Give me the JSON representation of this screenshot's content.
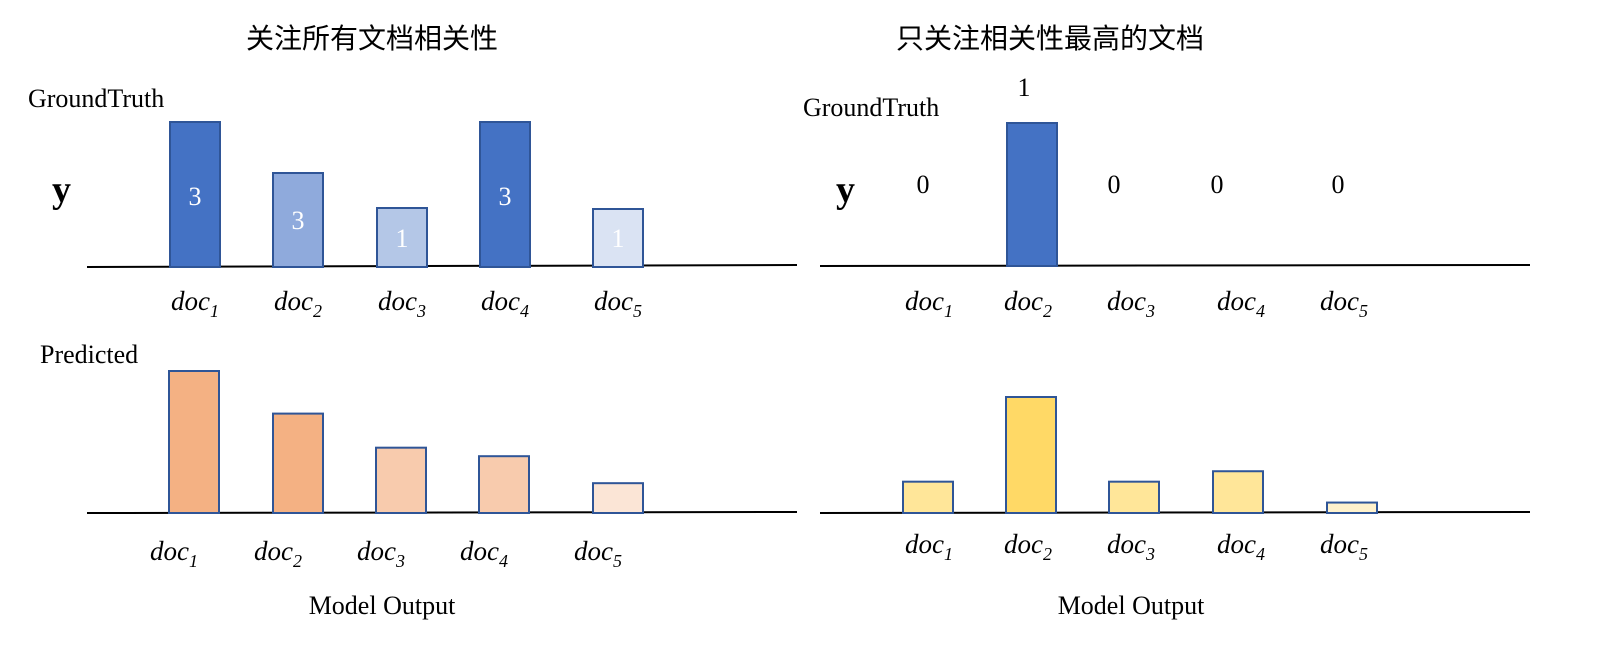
{
  "left_panel": {
    "title": "关注所有文档相关性",
    "groundtruth_label": "GroundTruth",
    "y_label": "y",
    "predicted_label": "Predicted",
    "model_output_label": "Model Output",
    "groundtruth_bars": [
      {
        "doc": "doc",
        "sub": "1",
        "value": 3,
        "label": "3",
        "color": "#4472C4"
      },
      {
        "doc": "doc",
        "sub": "2",
        "value": 3,
        "label": "3",
        "color": "#8FAADC"
      },
      {
        "doc": "doc",
        "sub": "3",
        "value": 1,
        "label": "1",
        "color": "#B4C7E7"
      },
      {
        "doc": "doc",
        "sub": "4",
        "value": 3,
        "label": "3",
        "color": "#4472C4"
      },
      {
        "doc": "doc",
        "sub": "5",
        "value": 1,
        "label": "1",
        "color": "#DAE3F3"
      }
    ],
    "predicted_bars": [
      {
        "doc": "doc",
        "sub": "1",
        "value": 1.0,
        "color": "#F4B183"
      },
      {
        "doc": "doc",
        "sub": "2",
        "value": 0.7,
        "color": "#F4B183"
      },
      {
        "doc": "doc",
        "sub": "3",
        "value": 0.46,
        "color": "#F8CBAD"
      },
      {
        "doc": "doc",
        "sub": "4",
        "value": 0.4,
        "color": "#F8CBAD"
      },
      {
        "doc": "doc",
        "sub": "5",
        "value": 0.21,
        "color": "#FBE5D6"
      }
    ]
  },
  "right_panel": {
    "title": "只关注相关性最高的文档",
    "groundtruth_label": "GroundTruth",
    "y_label": "y",
    "model_output_label": "Model Output",
    "groundtruth_bars": [
      {
        "doc": "doc",
        "sub": "1",
        "value": 0,
        "label": "0",
        "color": "#4472C4"
      },
      {
        "doc": "doc",
        "sub": "2",
        "value": 1,
        "label": "1",
        "color": "#4472C4"
      },
      {
        "doc": "doc",
        "sub": "3",
        "value": 0,
        "label": "0",
        "color": "#4472C4"
      },
      {
        "doc": "doc",
        "sub": "4",
        "value": 0,
        "label": "0",
        "color": "#4472C4"
      },
      {
        "doc": "doc",
        "sub": "5",
        "value": 0,
        "label": "0",
        "color": "#4472C4"
      }
    ],
    "predicted_bars": [
      {
        "doc": "doc",
        "sub": "1",
        "value": 0.27,
        "color": "#FFE699"
      },
      {
        "doc": "doc",
        "sub": "2",
        "value": 1.0,
        "color": "#FFD966"
      },
      {
        "doc": "doc",
        "sub": "3",
        "value": 0.27,
        "color": "#FFE699"
      },
      {
        "doc": "doc",
        "sub": "4",
        "value": 0.36,
        "color": "#FFE699"
      },
      {
        "doc": "doc",
        "sub": "5",
        "value": 0.09,
        "color": "#FFF2CC"
      }
    ]
  },
  "colors": {
    "bar_border": "#2F5597",
    "axis": "#000000",
    "text": "#000000"
  }
}
